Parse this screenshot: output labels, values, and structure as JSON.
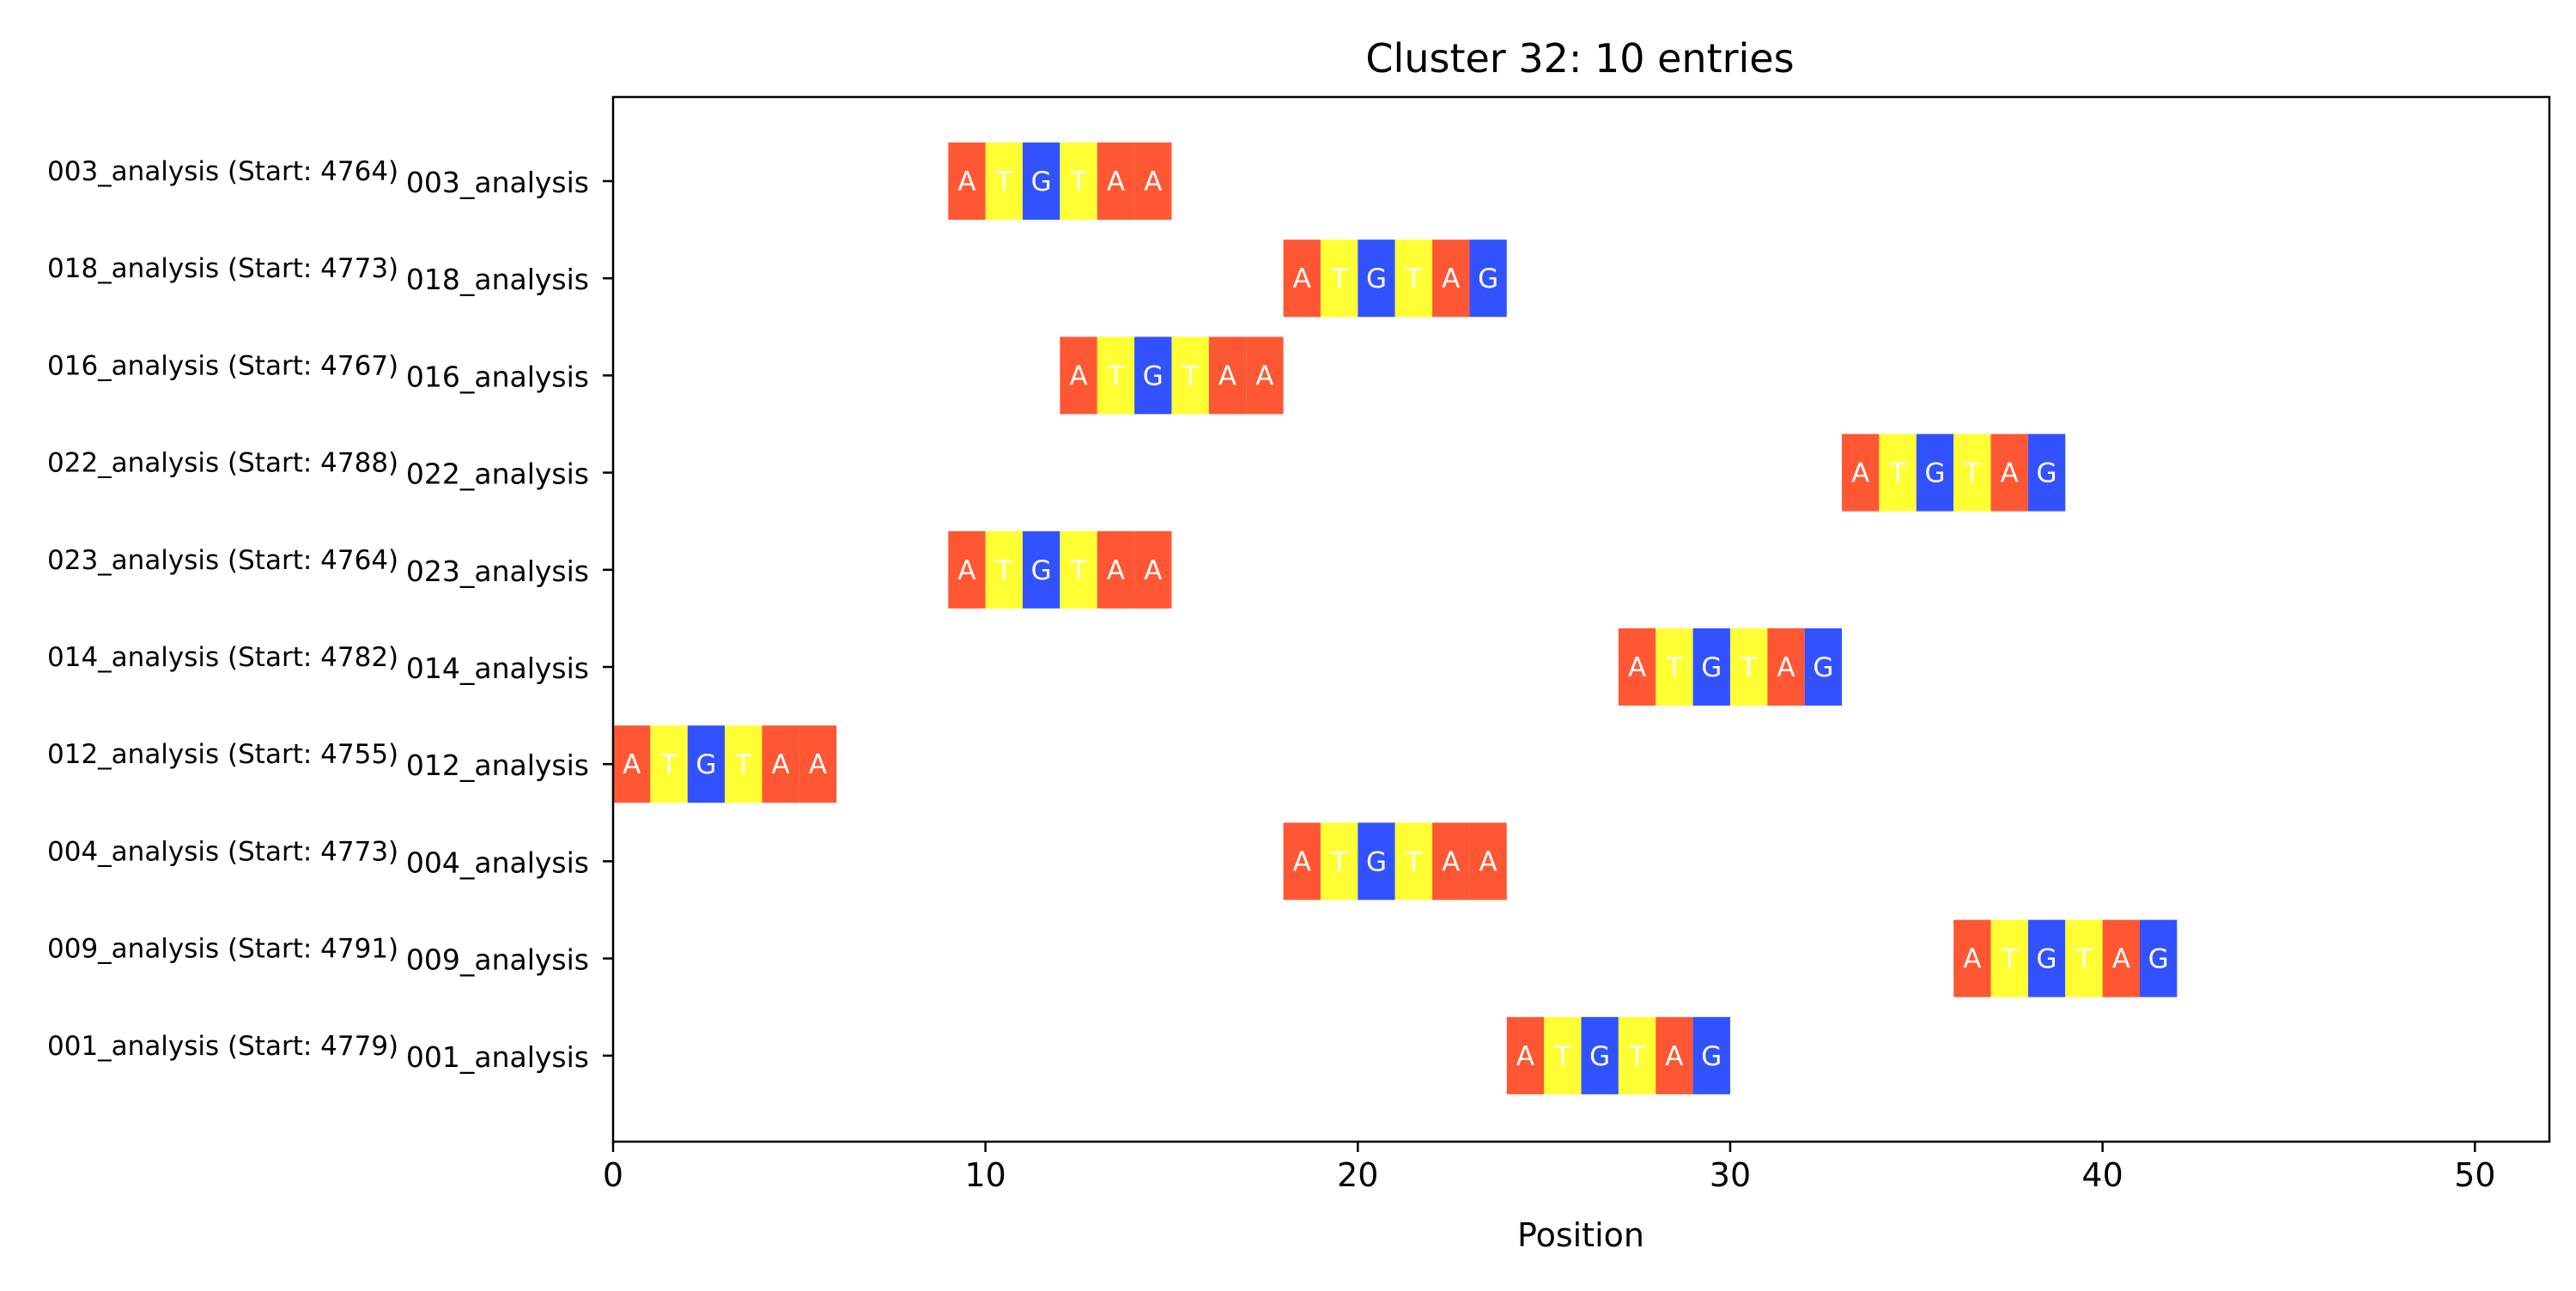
{
  "chart_data": {
    "type": "sequence-alignment",
    "title": "Cluster 32: 10 entries",
    "xlabel": "Position",
    "ylabel": "",
    "xlim": [
      0,
      52
    ],
    "xticks": [
      0,
      10,
      20,
      30,
      40,
      50
    ],
    "grid": false,
    "legend": "none",
    "base_colors": {
      "A": "#ff5733",
      "T": "#ffff33",
      "G": "#3352ff"
    },
    "rows": [
      {
        "label": "003_analysis",
        "side_label": "003_analysis (Start: 4764)",
        "start": 9,
        "sequence": "ATGTAA"
      },
      {
        "label": "018_analysis",
        "side_label": "018_analysis (Start: 4773)",
        "start": 18,
        "sequence": "ATGTAG"
      },
      {
        "label": "016_analysis",
        "side_label": "016_analysis (Start: 4767)",
        "start": 12,
        "sequence": "ATGTAA"
      },
      {
        "label": "022_analysis",
        "side_label": "022_analysis (Start: 4788)",
        "start": 33,
        "sequence": "ATGTAG"
      },
      {
        "label": "023_analysis",
        "side_label": "023_analysis (Start: 4764)",
        "start": 9,
        "sequence": "ATGTAA"
      },
      {
        "label": "014_analysis",
        "side_label": "014_analysis (Start: 4782)",
        "start": 27,
        "sequence": "ATGTAG"
      },
      {
        "label": "012_analysis",
        "side_label": "012_analysis (Start: 4755)",
        "start": 0,
        "sequence": "ATGTAA"
      },
      {
        "label": "004_analysis",
        "side_label": "004_analysis (Start: 4773)",
        "start": 18,
        "sequence": "ATGTAA"
      },
      {
        "label": "009_analysis",
        "side_label": "009_analysis (Start: 4791)",
        "start": 36,
        "sequence": "ATGTAG"
      },
      {
        "label": "001_analysis",
        "side_label": "001_analysis (Start: 4779)",
        "start": 24,
        "sequence": "ATGTAG"
      }
    ]
  }
}
